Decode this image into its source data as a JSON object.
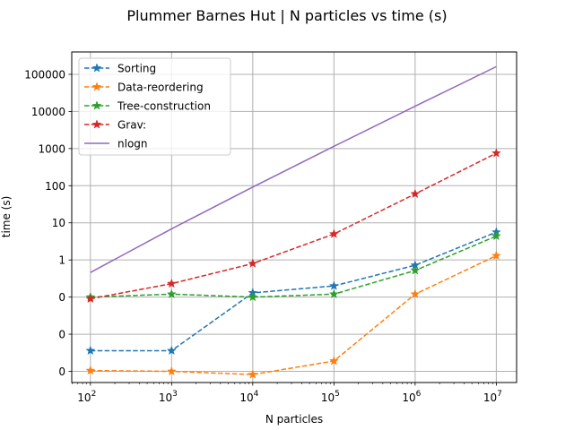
{
  "chart_data": {
    "type": "line",
    "title": "Plummer Barnes Hut | N particles vs time (s)",
    "xlabel": "N particles",
    "ylabel": "time (s)",
    "x_scale": "log",
    "y_scale": "log",
    "x": [
      100,
      1000,
      10000,
      100000,
      1000000,
      10000000
    ],
    "x_tick_labels": [
      {
        "base": "10",
        "exp": "2"
      },
      {
        "base": "10",
        "exp": "3"
      },
      {
        "base": "10",
        "exp": "4"
      },
      {
        "base": "10",
        "exp": "5"
      },
      {
        "base": "10",
        "exp": "6"
      },
      {
        "base": "10",
        "exp": "7"
      }
    ],
    "y_ticks": [
      0.001,
      0.01,
      0.1,
      1,
      10,
      100,
      1000,
      10000,
      100000
    ],
    "y_tick_labels": [
      "0",
      "0",
      "0",
      "1",
      "10",
      "100",
      "1000",
      "10000",
      "100000"
    ],
    "ylim": [
      0.0005,
      400000
    ],
    "grid": true,
    "legend": "top-left",
    "series": [
      {
        "name": "Sorting",
        "color": "#1f77b4",
        "style": "dashed",
        "marker": "star",
        "values": [
          0.0036,
          0.0036,
          0.13,
          0.2,
          0.72,
          5.6
        ]
      },
      {
        "name": "Data-reordering",
        "color": "#ff7f0e",
        "style": "dashed",
        "marker": "star",
        "values": [
          0.00105,
          0.001,
          0.00082,
          0.0019,
          0.12,
          1.3
        ]
      },
      {
        "name": "Tree-construction",
        "color": "#2ca02c",
        "style": "dashed",
        "marker": "star",
        "values": [
          0.1,
          0.12,
          0.1,
          0.12,
          0.52,
          4.4
        ]
      },
      {
        "name": "Grav:",
        "color": "#d62728",
        "style": "dashed",
        "marker": "star",
        "values": [
          0.09,
          0.23,
          0.8,
          5,
          60,
          750
        ]
      },
      {
        "name": "nlogn",
        "color": "#9467bd",
        "style": "solid",
        "marker": "none",
        "values": [
          0.46,
          6.9,
          92,
          1150,
          13800,
          161000
        ]
      }
    ]
  }
}
